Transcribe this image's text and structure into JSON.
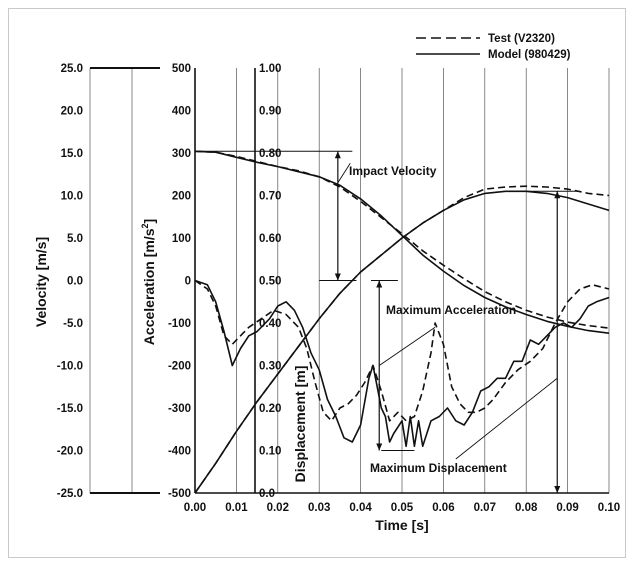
{
  "chart_data": {
    "type": "line",
    "xlabel": "Time  [s]",
    "xlim": [
      0,
      0.1
    ],
    "x_ticks": [
      "0.00",
      "0.01",
      "0.02",
      "0.03",
      "0.04",
      "0.05",
      "0.06",
      "0.07",
      "0.08",
      "0.09",
      "0.10"
    ],
    "grid": "vertical",
    "legend_position": "top-right",
    "legend": [
      {
        "label": "Test (V2320)",
        "style": "dashed"
      },
      {
        "label": "Model (980429)",
        "style": "solid"
      }
    ],
    "axes": {
      "velocity": {
        "label": "Velocity  [m/s]",
        "range": [
          -25,
          25
        ],
        "ticks": [
          "25.0",
          "20.0",
          "15.0",
          "10.0",
          "5.0",
          "0.0",
          "-5.0",
          "-10.0",
          "-15.0",
          "-20.0",
          "-25.0"
        ]
      },
      "acceleration": {
        "label": "Acceleration [m/s²]",
        "label_main": "Acceleration [m/s",
        "label_sup": "2",
        "label_end": "]",
        "range": [
          -500,
          500
        ],
        "ticks": [
          "500",
          "400",
          "300",
          "200",
          "100",
          "0",
          "-100",
          "-200",
          "-300",
          "-400",
          "-500"
        ]
      },
      "displacement": {
        "label": "Displacement [m]",
        "range": [
          0,
          1
        ],
        "ticks": [
          "1.00",
          "0.90",
          "0.80",
          "0.70",
          "0.60",
          "0.50",
          "0.40",
          "0.30",
          "0.20",
          "0.10",
          "0.0"
        ]
      }
    },
    "series": [
      {
        "name": "Test (V2320)",
        "quantity": "velocity",
        "style": "dashed",
        "x": [
          0,
          0.005,
          0.01,
          0.015,
          0.02,
          0.025,
          0.03,
          0.035,
          0.04,
          0.045,
          0.05,
          0.055,
          0.06,
          0.065,
          0.07,
          0.075,
          0.08,
          0.085,
          0.09,
          0.095,
          0.1
        ],
        "y": [
          15.2,
          15.1,
          14.6,
          14.0,
          13.4,
          12.9,
          12.2,
          11.0,
          9.3,
          7.4,
          5.5,
          3.5,
          1.8,
          0.2,
          -1.3,
          -2.5,
          -3.5,
          -4.3,
          -4.9,
          -5.3,
          -5.6
        ]
      },
      {
        "name": "Model (980429)",
        "quantity": "velocity",
        "style": "solid",
        "x": [
          0,
          0.005,
          0.01,
          0.015,
          0.02,
          0.025,
          0.03,
          0.035,
          0.04,
          0.045,
          0.05,
          0.055,
          0.06,
          0.065,
          0.07,
          0.075,
          0.08,
          0.085,
          0.09,
          0.095,
          0.1
        ],
        "y": [
          15.2,
          15.1,
          14.5,
          13.9,
          13.4,
          12.8,
          12.2,
          11.2,
          9.6,
          7.6,
          5.3,
          3.0,
          1.1,
          -0.6,
          -2.0,
          -3.1,
          -4.0,
          -4.8,
          -5.4,
          -5.9,
          -6.2
        ]
      },
      {
        "name": "Test (V2320)",
        "quantity": "displacement",
        "style": "dashed",
        "x": [
          0,
          0.005,
          0.01,
          0.015,
          0.02,
          0.025,
          0.03,
          0.035,
          0.04,
          0.045,
          0.05,
          0.055,
          0.06,
          0.065,
          0.07,
          0.075,
          0.08,
          0.085,
          0.09,
          0.095,
          0.1
        ],
        "y": [
          0.0,
          0.07,
          0.145,
          0.215,
          0.28,
          0.345,
          0.41,
          0.47,
          0.52,
          0.56,
          0.6,
          0.635,
          0.665,
          0.695,
          0.715,
          0.72,
          0.722,
          0.72,
          0.715,
          0.705,
          0.7
        ]
      },
      {
        "name": "Model (980429)",
        "quantity": "displacement",
        "style": "solid",
        "x": [
          0,
          0.005,
          0.01,
          0.015,
          0.02,
          0.025,
          0.03,
          0.035,
          0.04,
          0.045,
          0.05,
          0.055,
          0.06,
          0.065,
          0.07,
          0.075,
          0.08,
          0.085,
          0.09,
          0.095,
          0.1
        ],
        "y": [
          0.0,
          0.07,
          0.145,
          0.215,
          0.28,
          0.345,
          0.41,
          0.47,
          0.52,
          0.56,
          0.6,
          0.635,
          0.665,
          0.69,
          0.705,
          0.71,
          0.71,
          0.705,
          0.695,
          0.68,
          0.665
        ]
      },
      {
        "name": "Test (V2320)",
        "quantity": "acceleration",
        "style": "dashed",
        "x": [
          0,
          0.003,
          0.005,
          0.007,
          0.009,
          0.011,
          0.013,
          0.016,
          0.019,
          0.022,
          0.025,
          0.027,
          0.029,
          0.031,
          0.033,
          0.035,
          0.037,
          0.039,
          0.041,
          0.043,
          0.045,
          0.047,
          0.049,
          0.051,
          0.053,
          0.055,
          0.057,
          0.058,
          0.06,
          0.062,
          0.064,
          0.066,
          0.068,
          0.07,
          0.072,
          0.075,
          0.078,
          0.081,
          0.084,
          0.087,
          0.09,
          0.093,
          0.096,
          0.1
        ],
        "y": [
          0,
          -20,
          -60,
          -130,
          -150,
          -130,
          -110,
          -90,
          -70,
          -80,
          -110,
          -160,
          -240,
          -310,
          -330,
          -300,
          -290,
          -270,
          -240,
          -200,
          -260,
          -330,
          -310,
          -330,
          -320,
          -260,
          -170,
          -100,
          -150,
          -250,
          -290,
          -310,
          -310,
          -300,
          -280,
          -240,
          -210,
          -190,
          -160,
          -100,
          -50,
          -20,
          -10,
          -20
        ]
      },
      {
        "name": "Model (980429)",
        "quantity": "acceleration",
        "style": "solid",
        "x": [
          0,
          0.003,
          0.005,
          0.007,
          0.009,
          0.011,
          0.013,
          0.015,
          0.018,
          0.02,
          0.022,
          0.024,
          0.026,
          0.028,
          0.03,
          0.032,
          0.034,
          0.036,
          0.038,
          0.04,
          0.042,
          0.043,
          0.044,
          0.045,
          0.046,
          0.047,
          0.048,
          0.05,
          0.051,
          0.052,
          0.053,
          0.054,
          0.055,
          0.057,
          0.059,
          0.061,
          0.063,
          0.065,
          0.067,
          0.069,
          0.071,
          0.073,
          0.075,
          0.077,
          0.079,
          0.081,
          0.083,
          0.085,
          0.087,
          0.089,
          0.091,
          0.093,
          0.095,
          0.097,
          0.1
        ],
        "y": [
          0,
          -10,
          -50,
          -120,
          -200,
          -160,
          -130,
          -120,
          -90,
          -60,
          -50,
          -70,
          -110,
          -170,
          -210,
          -280,
          -320,
          -370,
          -380,
          -340,
          -230,
          -200,
          -250,
          -300,
          -320,
          -380,
          -360,
          -330,
          -390,
          -320,
          -390,
          -330,
          -390,
          -330,
          -320,
          -300,
          -330,
          -340,
          -310,
          -260,
          -250,
          -230,
          -230,
          -190,
          -190,
          -140,
          -150,
          -130,
          -110,
          -100,
          -110,
          -90,
          -60,
          -50,
          -40
        ]
      }
    ],
    "annotations": [
      "Impact Velocity",
      "Maximum Acceleration",
      "Maximum Displacement"
    ]
  }
}
